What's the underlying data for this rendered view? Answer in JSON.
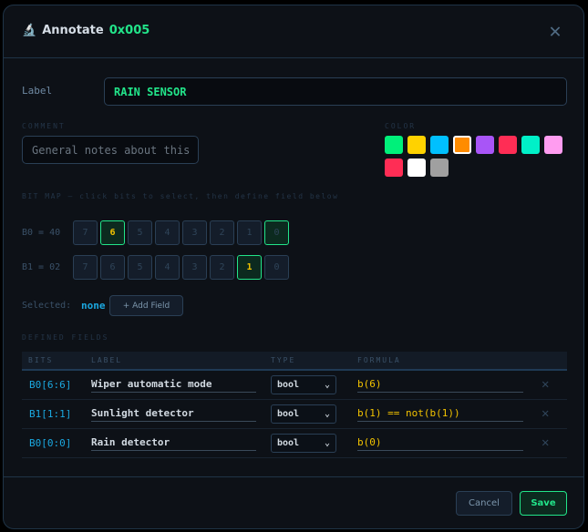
{
  "header": {
    "icon": "microscope-icon",
    "title": "Annotate",
    "id": "0x005",
    "close_icon": "close-icon"
  },
  "label": {
    "caption": "Label",
    "value": "RAIN SENSOR"
  },
  "comment": {
    "caption": "COMMENT",
    "placeholder": "General notes about this"
  },
  "color": {
    "caption": "COLOR",
    "swatches": [
      "#00f07a",
      "#ffd200",
      "#00c0ff",
      "#ff8c00",
      "#a855f7",
      "#ff2d55",
      "#00f0c8",
      "#ff9cf0",
      "#ff2d55",
      "#ffffff",
      "#a0a0a0"
    ],
    "selected": "#ff8c00"
  },
  "bitmap": {
    "caption": "BIT MAP — click bits to select, then define field below",
    "rows": [
      {
        "label": "B0 = 40",
        "bits": [
          "7",
          "6",
          "5",
          "4",
          "3",
          "2",
          "1",
          "0"
        ],
        "highlighted": [
          "6",
          "0"
        ]
      },
      {
        "label": "B1 = 02",
        "bits": [
          "7",
          "6",
          "5",
          "4",
          "3",
          "2",
          "1",
          "0"
        ],
        "highlighted": [
          "1"
        ]
      }
    ]
  },
  "selection": {
    "caption": "Selected:",
    "value": "none",
    "add_button": "+ Add Field"
  },
  "fields": {
    "caption": "DEFINED FIELDS",
    "columns": [
      "BITS",
      "LABEL",
      "TYPE",
      "FORMULA"
    ],
    "rows": [
      {
        "bits": "B0[6:6]",
        "label": "Wiper automatic mode",
        "type": "bool",
        "formula": "b(6)"
      },
      {
        "bits": "B1[1:1]",
        "label": "Sunlight detector",
        "type": "bool",
        "formula": "b(1) == not(b(1))"
      },
      {
        "bits": "B0[0:0]",
        "label": "Rain detector",
        "type": "bool",
        "formula": "b(0)"
      }
    ]
  },
  "footer": {
    "cancel": "Cancel",
    "save": "Save"
  }
}
